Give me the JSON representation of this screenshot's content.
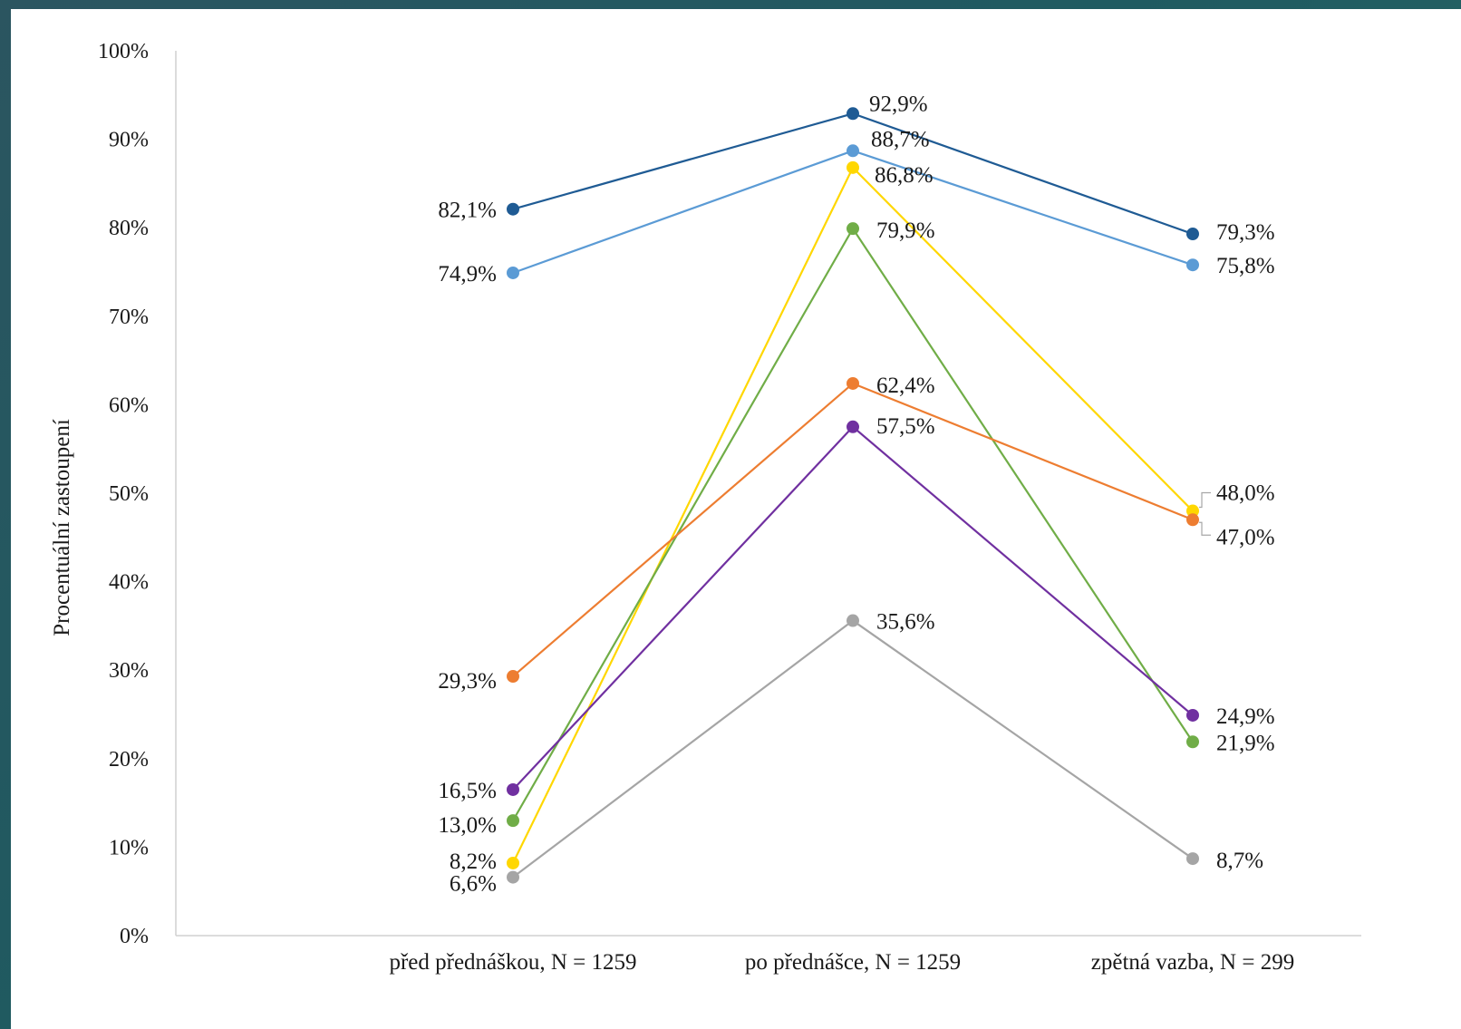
{
  "chart_data": {
    "type": "line",
    "categories": [
      "před přednáškou, N = 1259",
      "po přednášce, N = 1259",
      "zpětná vazba, N = 299"
    ],
    "ylabel": "Procentuální zastoupení",
    "xlabel": "",
    "ylim": [
      0,
      100
    ],
    "yticks": [
      "0%",
      "10%",
      "20%",
      "30%",
      "40%",
      "50%",
      "60%",
      "70%",
      "80%",
      "90%",
      "100%"
    ],
    "grid": false,
    "legend": "none",
    "series": [
      {
        "color": "#1f5b94",
        "values": [
          82.1,
          92.9,
          79.3
        ],
        "labels": [
          "82,1%",
          "92,9%",
          "79,3%"
        ]
      },
      {
        "color": "#5b9bd5",
        "values": [
          74.9,
          88.7,
          75.8
        ],
        "labels": [
          "74,9%",
          "88,7%",
          "75,8%"
        ]
      },
      {
        "color": "#ffd700",
        "values": [
          8.2,
          86.8,
          48.0
        ],
        "labels": [
          "8,2%",
          "86,8%",
          "48,0%"
        ]
      },
      {
        "color": "#70ad47",
        "values": [
          13.0,
          79.9,
          21.9
        ],
        "labels": [
          "13,0%",
          "79,9%",
          "21,9%"
        ]
      },
      {
        "color": "#ed7d31",
        "values": [
          29.3,
          62.4,
          47.0
        ],
        "labels": [
          "29,3%",
          "62,4%",
          "47,0%"
        ]
      },
      {
        "color": "#7030a0",
        "values": [
          16.5,
          57.5,
          24.9
        ],
        "labels": [
          "16,5%",
          "57,5%",
          "24,9%"
        ]
      },
      {
        "color": "#a5a5a5",
        "values": [
          6.6,
          35.6,
          8.7
        ],
        "labels": [
          "6,6%",
          "35,6%",
          "8,7%"
        ]
      }
    ]
  }
}
